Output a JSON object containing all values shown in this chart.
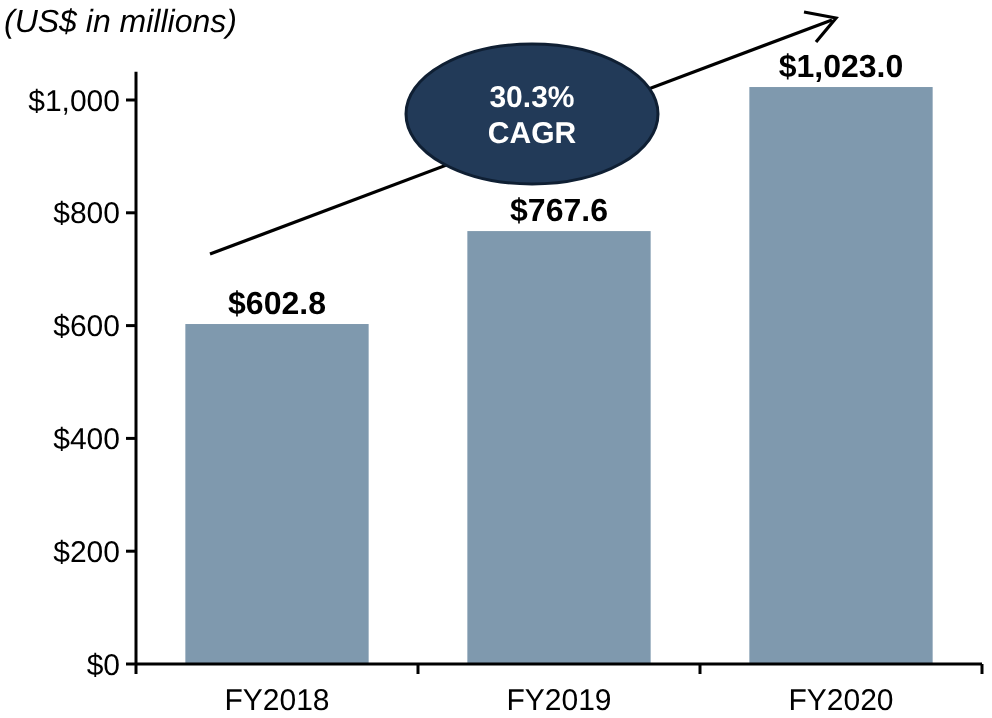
{
  "chart_data": {
    "type": "bar",
    "ylabel": "(US$ in millions)",
    "categories": [
      "FY2018",
      "FY2019",
      "FY2020"
    ],
    "values": [
      602.8,
      767.6,
      1023.0
    ],
    "value_labels": [
      "$602.8",
      "$767.6",
      "$1,023.0"
    ],
    "color": "#7f99ae",
    "ylim": [
      0,
      1050
    ],
    "yticks": [
      {
        "value": 0,
        "label": "$0"
      },
      {
        "value": 200,
        "label": "$200"
      },
      {
        "value": 400,
        "label": "$400"
      },
      {
        "value": 600,
        "label": "$600"
      },
      {
        "value": 800,
        "label": "$800"
      },
      {
        "value": 1000,
        "label": "$1,000"
      }
    ],
    "annotations": [
      "30.3% CAGR"
    ],
    "grid": false
  }
}
